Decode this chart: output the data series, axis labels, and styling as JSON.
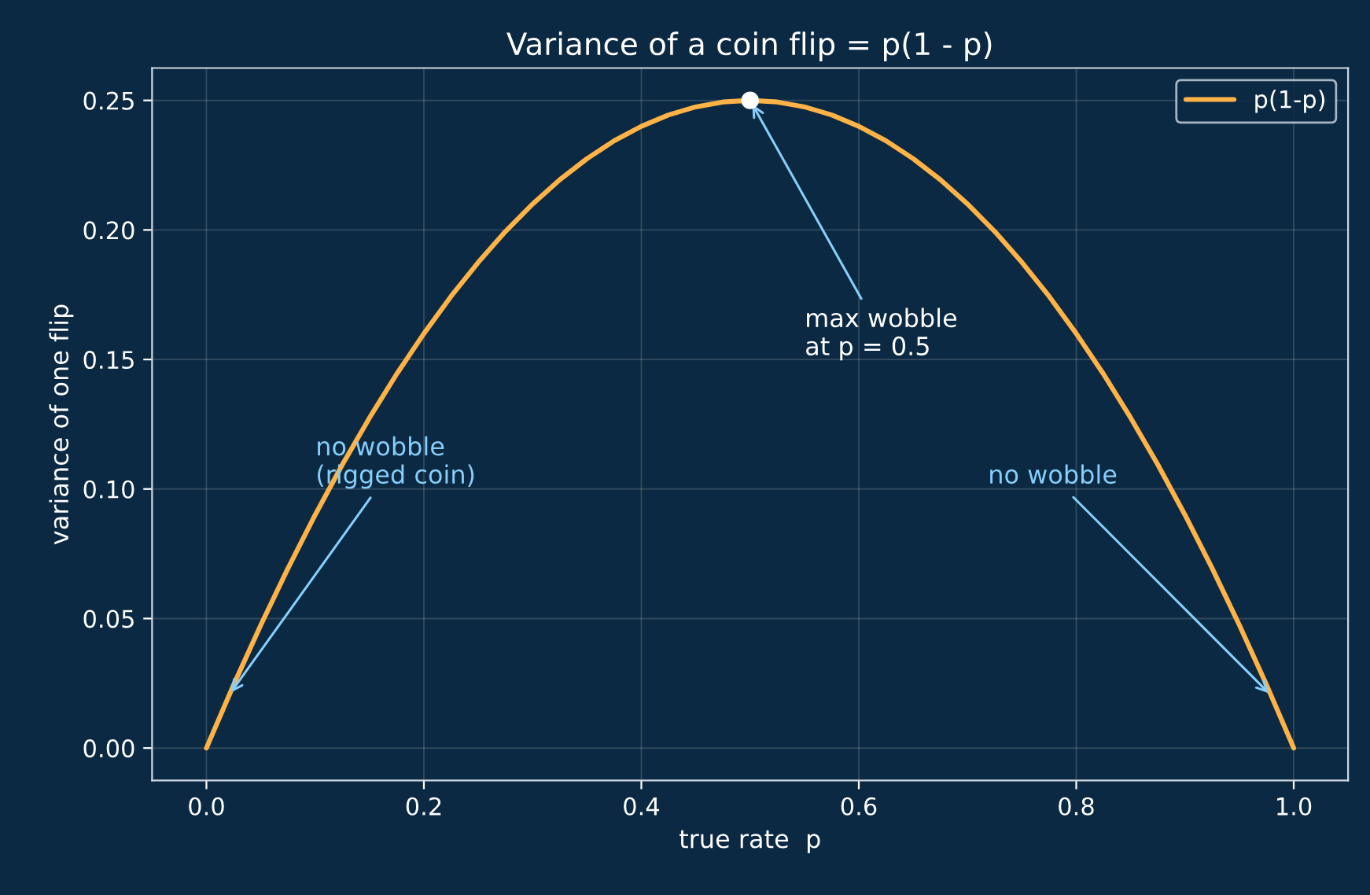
{
  "chart_data": {
    "type": "line",
    "title": "Variance of a coin flip = p(1 - p)",
    "xlabel": "true rate  p",
    "ylabel": "variance of one flip",
    "series": [
      {
        "name": "p(1-p)",
        "color": "#ffb347",
        "x": [
          0,
          0.025,
          0.05,
          0.075,
          0.1,
          0.125,
          0.15,
          0.175,
          0.2,
          0.225,
          0.25,
          0.275,
          0.3,
          0.325,
          0.35,
          0.375,
          0.4,
          0.425,
          0.45,
          0.475,
          0.5,
          0.525,
          0.55,
          0.575,
          0.6,
          0.625,
          0.65,
          0.675,
          0.7,
          0.725,
          0.75,
          0.775,
          0.8,
          0.825,
          0.85,
          0.875,
          0.9,
          0.925,
          0.95,
          0.975,
          1
        ],
        "values": [
          0,
          0.0244,
          0.0475,
          0.0694,
          0.09,
          0.1094,
          0.1275,
          0.1444,
          0.16,
          0.1744,
          0.1875,
          0.1994,
          0.21,
          0.2194,
          0.2275,
          0.2344,
          0.24,
          0.2444,
          0.2475,
          0.2494,
          0.25,
          0.2494,
          0.2475,
          0.2444,
          0.24,
          0.2344,
          0.2275,
          0.2194,
          0.21,
          0.1994,
          0.1875,
          0.1744,
          0.16,
          0.1444,
          0.1275,
          0.1094,
          0.09,
          0.0694,
          0.0475,
          0.0244,
          0
        ]
      },
      {
        "type": "scatter",
        "color": "#ffffff",
        "x": [
          0.5
        ],
        "values": [
          0.25
        ]
      }
    ],
    "annotations": [
      {
        "text": "max wobble\nat p = 0.5",
        "x": 0.5,
        "y": 0.25
      },
      {
        "text": "no wobble\n(rigged coin)",
        "x": 0.02,
        "y": 0.02
      },
      {
        "text": "no wobble",
        "x": 0.98,
        "y": 0.02
      }
    ],
    "xlim": [
      -0.05,
      1.05
    ],
    "ylim": [
      -0.0125,
      0.2625
    ],
    "xticks": [
      {
        "value": 0,
        "label": "0.0"
      },
      0.2,
      0.4,
      0.6,
      0.8,
      {
        "value": 1,
        "label": "1.0"
      }
    ],
    "yticks": [
      {
        "value": 0,
        "label": "0.00"
      },
      0.05,
      {
        "value": 0.1,
        "label": "0.10"
      },
      0.15,
      {
        "value": 0.2,
        "label": "0.20"
      },
      0.25
    ],
    "grid": true,
    "legend": "top right",
    "line_style": "solid"
  }
}
